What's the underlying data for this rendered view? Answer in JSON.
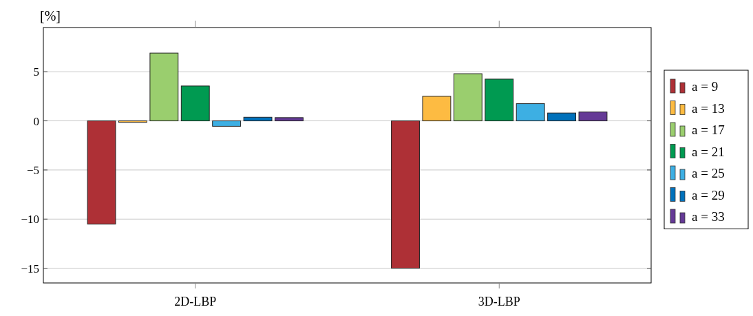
{
  "chart_data": {
    "type": "bar",
    "ylabel": "[%]",
    "categories": [
      "2D-LBP",
      "3D-LBP"
    ],
    "series": [
      {
        "name": "a = 9",
        "color": "#ae3036",
        "values": [
          -10.5,
          -15.0
        ]
      },
      {
        "name": "a = 13",
        "color": "#fdbb42",
        "values": [
          -0.15,
          2.5
        ]
      },
      {
        "name": "a = 17",
        "color": "#9ace6e",
        "values": [
          6.9,
          4.8
        ]
      },
      {
        "name": "a = 21",
        "color": "#009a51",
        "values": [
          3.55,
          4.25
        ]
      },
      {
        "name": "a = 25",
        "color": "#3dafe3",
        "values": [
          -0.55,
          1.75
        ]
      },
      {
        "name": "a = 29",
        "color": "#0071bb",
        "values": [
          0.37,
          0.8
        ]
      },
      {
        "name": "a = 33",
        "color": "#653a96",
        "values": [
          0.33,
          0.9
        ]
      }
    ],
    "ylim": [
      -16.5,
      9.5
    ],
    "yticks": [
      {
        "value": -15,
        "label": "−15"
      },
      {
        "value": -10,
        "label": "−10"
      },
      {
        "value": -5,
        "label": "−5"
      },
      0,
      5
    ],
    "grid": "y",
    "legend": "right"
  }
}
